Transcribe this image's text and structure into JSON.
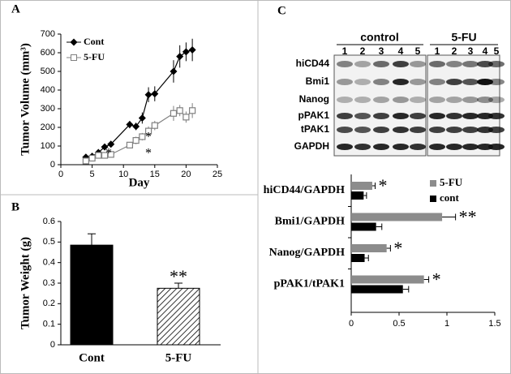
{
  "chart_data": [
    {
      "type": "line",
      "panel": "A",
      "xlabel": "Day",
      "ylabel": "Tumor Volume (mm³)",
      "xlim": [
        0,
        25
      ],
      "xticks": [
        0,
        5,
        10,
        15,
        20,
        25
      ],
      "ylim": [
        0,
        700
      ],
      "yticks": [
        0,
        100,
        200,
        300,
        400,
        500,
        600,
        700
      ],
      "x": [
        4,
        5,
        6,
        7,
        8,
        11,
        12,
        13,
        14,
        15,
        18,
        19,
        20,
        21
      ],
      "series": [
        {
          "name": "Cont",
          "color": "#000000",
          "marker": "diamond",
          "values": [
            40,
            45,
            65,
            95,
            110,
            215,
            205,
            250,
            375,
            380,
            500,
            580,
            605,
            615
          ],
          "errors": [
            10,
            10,
            10,
            15,
            15,
            20,
            20,
            30,
            40,
            40,
            60,
            60,
            50,
            60
          ]
        },
        {
          "name": "5-FU",
          "color": "#808080",
          "marker": "square",
          "values": [
            20,
            35,
            50,
            50,
            55,
            105,
            130,
            150,
            180,
            210,
            275,
            290,
            255,
            290
          ],
          "errors": [
            10,
            10,
            10,
            10,
            15,
            15,
            20,
            20,
            25,
            25,
            40,
            30,
            30,
            40
          ]
        }
      ],
      "annotations": [
        "*",
        "*",
        "*"
      ]
    },
    {
      "type": "bar",
      "panel": "B",
      "ylabel": "Tumor Weight (g)",
      "ylim": [
        0,
        0.6
      ],
      "yticks": [
        0,
        0.1,
        0.2,
        0.3,
        0.4,
        0.5,
        0.6
      ],
      "categories": [
        "Cont",
        "5-FU"
      ],
      "values": [
        0.485,
        0.275
      ],
      "errors": [
        0.055,
        0.025
      ],
      "colors": [
        "#000000",
        "#ffffff"
      ],
      "hatch": [
        false,
        true
      ],
      "annotations": [
        "**"
      ]
    },
    {
      "type": "hbar",
      "panel": "C",
      "xlim": [
        0,
        1.5
      ],
      "xticks": [
        0,
        0.5,
        1,
        1.5
      ],
      "categories": [
        "hiCD44/GAPDH",
        "Bmi1/GAPDH",
        "Nanog/GAPDH",
        "pPAK1/tPAK1"
      ],
      "series": [
        {
          "name": "5-FU",
          "color": "#8c8c8c",
          "values": [
            0.22,
            0.95,
            0.37,
            0.76
          ],
          "errors": [
            0.03,
            0.14,
            0.04,
            0.05
          ]
        },
        {
          "name": "cont",
          "color": "#000000",
          "values": [
            0.13,
            0.26,
            0.14,
            0.54
          ],
          "errors": [
            0.03,
            0.06,
            0.04,
            0.06
          ]
        }
      ],
      "annotations": [
        "*",
        "**",
        "*",
        "*"
      ]
    }
  ],
  "blot": {
    "groups": [
      "control",
      "5-FU"
    ],
    "lanes": [
      "1",
      "2",
      "3",
      "4",
      "5",
      "1",
      "2",
      "3",
      "4",
      "5"
    ],
    "rows": [
      "hiCD44",
      "Bmi1",
      "Nanog",
      "pPAK1",
      "tPAK1",
      "GAPDH"
    ]
  }
}
